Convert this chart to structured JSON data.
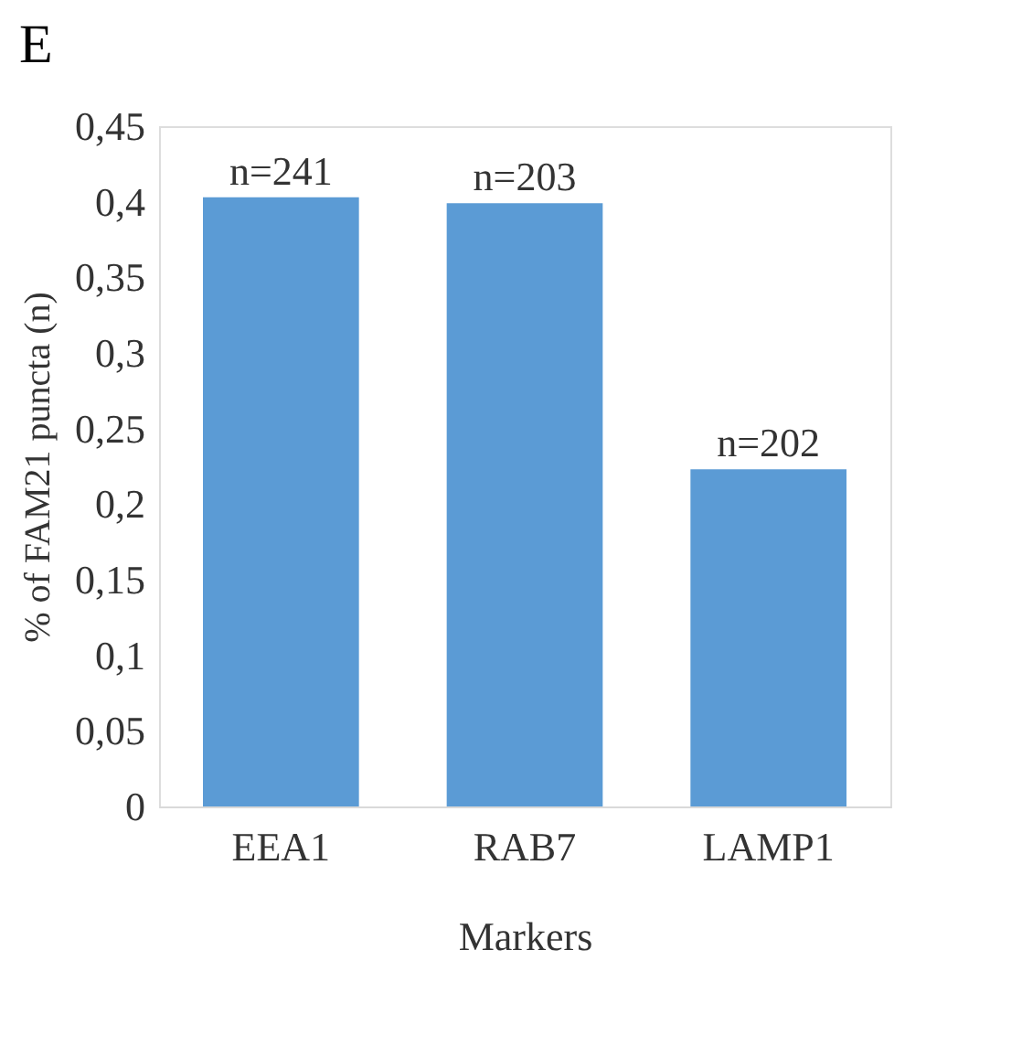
{
  "chart_data": {
    "type": "bar",
    "title": "E",
    "xlabel": "Markers",
    "ylabel": "% of FAM21 puncta (n)",
    "categories": [
      "EEA1",
      "RAB7",
      "LAMP1"
    ],
    "values": [
      0.403,
      0.399,
      0.223
    ],
    "color": "#5b9bd5",
    "ylim": [
      0,
      0.45
    ],
    "yticks": [
      {
        "value": 0,
        "label": "0"
      },
      {
        "value": 0.05,
        "label": "0,05"
      },
      {
        "value": 0.1,
        "label": "0,1"
      },
      {
        "value": 0.15,
        "label": "0,15"
      },
      {
        "value": 0.2,
        "label": "0,2"
      },
      {
        "value": 0.25,
        "label": "0,25"
      },
      {
        "value": 0.3,
        "label": "0,3"
      },
      {
        "value": 0.35,
        "label": "0,35"
      },
      {
        "value": 0.4,
        "label": "0,4"
      },
      {
        "value": 0.45,
        "label": "0,45"
      }
    ],
    "annotations": [
      {
        "text": "n=241",
        "x": "EEA1",
        "y": 0.403
      },
      {
        "text": "n=203",
        "x": "RAB7",
        "y": 0.399
      },
      {
        "text": "n=202",
        "x": "LAMP1",
        "y": 0.223
      }
    ],
    "grid": false
  }
}
